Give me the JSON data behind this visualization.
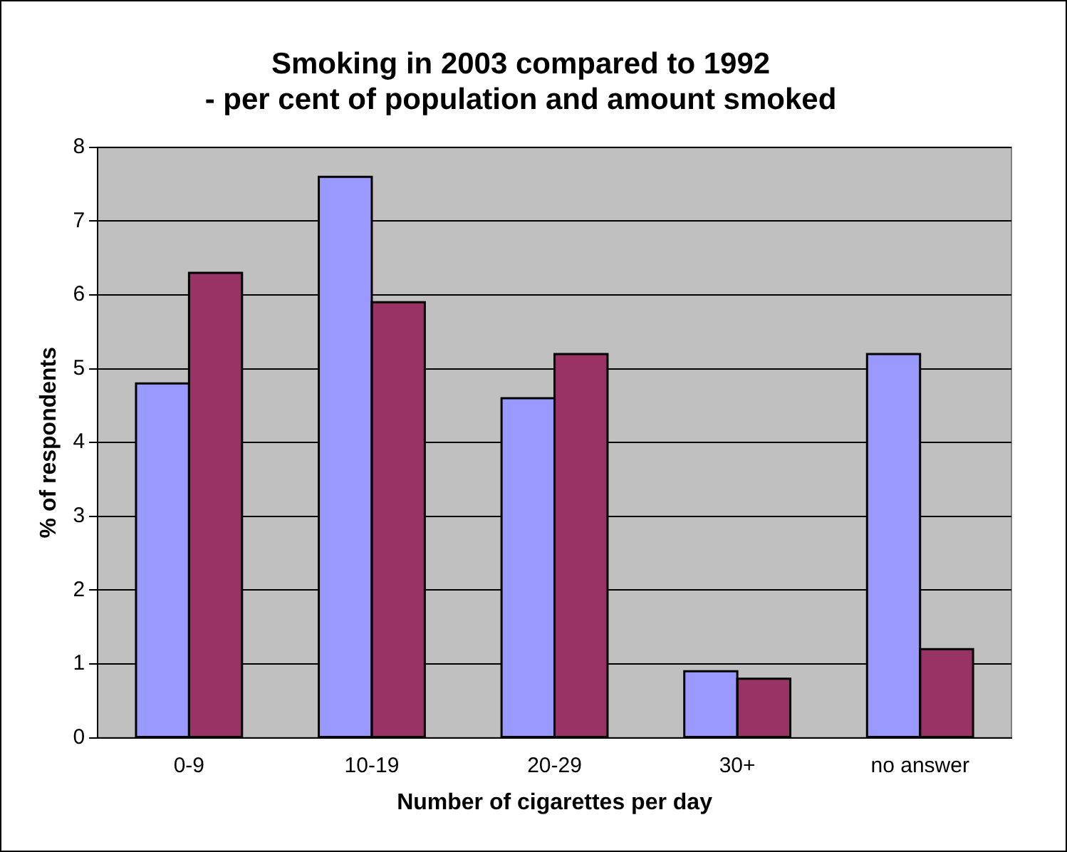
{
  "chart_data": {
    "type": "bar",
    "title": "Smoking in 2003 compared to 1992\n- per cent of population and amount smoked",
    "xlabel": "Number of cigarettes per day",
    "ylabel": "% of respondents",
    "categories": [
      "0-9",
      "10-19",
      "20-29",
      "30+",
      "no answer"
    ],
    "series": [
      {
        "color": "#9999ff",
        "values": [
          4.8,
          7.6,
          4.6,
          0.9,
          5.2
        ]
      },
      {
        "color": "#993366",
        "values": [
          6.3,
          5.9,
          5.2,
          0.8,
          1.2
        ]
      }
    ],
    "ylim": [
      0,
      8
    ],
    "yticks": [
      0,
      1,
      2,
      3,
      4,
      5,
      6,
      7,
      8
    ],
    "grid": "y",
    "legend": false
  }
}
